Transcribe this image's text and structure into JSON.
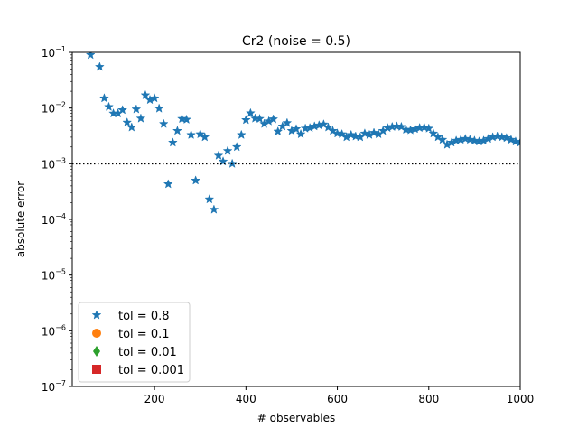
{
  "chart_data": {
    "type": "scatter",
    "title": "Cr2 (noise = 0.5)",
    "xlabel": "# observables",
    "ylabel": "absolute error",
    "xlim": [
      20,
      1000
    ],
    "ylim": [
      1e-07,
      0.1
    ],
    "yscale": "log",
    "grid": false,
    "legend_position": "lower-left",
    "x_ticks": [
      {
        "value": 200,
        "label": "200"
      },
      {
        "value": 400,
        "label": "400"
      },
      {
        "value": 600,
        "label": "600"
      },
      {
        "value": 800,
        "label": "800"
      },
      {
        "value": 1000,
        "label": "1000"
      }
    ],
    "y_ticks": [
      {
        "value": 1e-07,
        "base": "10",
        "exp": "−7"
      },
      {
        "value": 1e-06,
        "base": "10",
        "exp": "−6"
      },
      {
        "value": 1e-05,
        "base": "10",
        "exp": "−5"
      },
      {
        "value": 0.0001,
        "base": "10",
        "exp": "−4"
      },
      {
        "value": 0.001,
        "base": "10",
        "exp": "−3"
      },
      {
        "value": 0.01,
        "base": "10",
        "exp": "−2"
      },
      {
        "value": 0.1,
        "base": "10",
        "exp": "−1"
      }
    ],
    "reference_line": {
      "y": 0.001,
      "style": "dotted",
      "color": "#000000"
    },
    "series": [
      {
        "name": "tol = 0.8",
        "marker": "star",
        "color": "#1f77b4",
        "x": [
          60,
          70,
          80,
          90,
          100,
          110,
          120,
          130,
          140,
          150,
          160,
          170,
          180,
          190,
          200,
          210,
          220,
          230,
          240,
          250,
          260,
          270,
          280,
          290,
          300,
          310,
          320,
          330,
          340,
          350,
          360,
          370,
          380,
          390,
          400,
          410,
          420,
          430,
          440,
          450,
          460,
          470,
          480,
          490,
          500,
          510,
          520,
          530,
          540,
          550,
          560,
          570,
          580,
          590,
          600,
          610,
          620,
          630,
          640,
          650,
          660,
          670,
          680,
          690,
          700,
          710,
          720,
          730,
          740,
          750,
          760,
          770,
          780,
          790,
          800,
          810,
          820,
          830,
          840,
          850,
          860,
          870,
          880,
          890,
          900,
          910,
          920,
          930,
          940,
          950,
          960,
          970,
          980,
          990,
          1000
        ],
        "y": [
          0.09,
          0.12,
          0.055,
          0.015,
          0.0105,
          0.008,
          0.008,
          0.0092,
          0.0055,
          0.0045,
          0.0095,
          0.0065,
          0.017,
          0.014,
          0.015,
          0.0098,
          0.0052,
          0.00043,
          0.0024,
          0.0039,
          0.0064,
          0.0062,
          0.0033,
          0.0005,
          0.0034,
          0.003,
          0.00023,
          0.00015,
          0.0014,
          0.0011,
          0.0017,
          0.001,
          0.002,
          0.0033,
          0.0061,
          0.0081,
          0.0065,
          0.0064,
          0.0052,
          0.0058,
          0.0063,
          0.0038,
          0.0047,
          0.0054,
          0.0039,
          0.0042,
          0.0034,
          0.0043,
          0.0044,
          0.0047,
          0.0049,
          0.0051,
          0.0045,
          0.0039,
          0.0035,
          0.0034,
          0.003,
          0.0033,
          0.0031,
          0.003,
          0.0035,
          0.0033,
          0.0036,
          0.0034,
          0.0039,
          0.0044,
          0.0046,
          0.0047,
          0.0046,
          0.0041,
          0.004,
          0.0042,
          0.0044,
          0.0045,
          0.0043,
          0.0035,
          0.003,
          0.0027,
          0.0022,
          0.0024,
          0.0026,
          0.0027,
          0.0028,
          0.0027,
          0.0026,
          0.0025,
          0.0026,
          0.0028,
          0.003,
          0.0031,
          0.003,
          0.0029,
          0.0027,
          0.0025,
          0.0024
        ]
      },
      {
        "name": "tol = 0.1",
        "marker": "circle",
        "color": "#ff7f0e",
        "x": [],
        "y": []
      },
      {
        "name": "tol = 0.01",
        "marker": "diamond",
        "color": "#2ca02c",
        "x": [],
        "y": []
      },
      {
        "name": "tol = 0.001",
        "marker": "square",
        "color": "#d62728",
        "x": [],
        "y": []
      }
    ]
  }
}
